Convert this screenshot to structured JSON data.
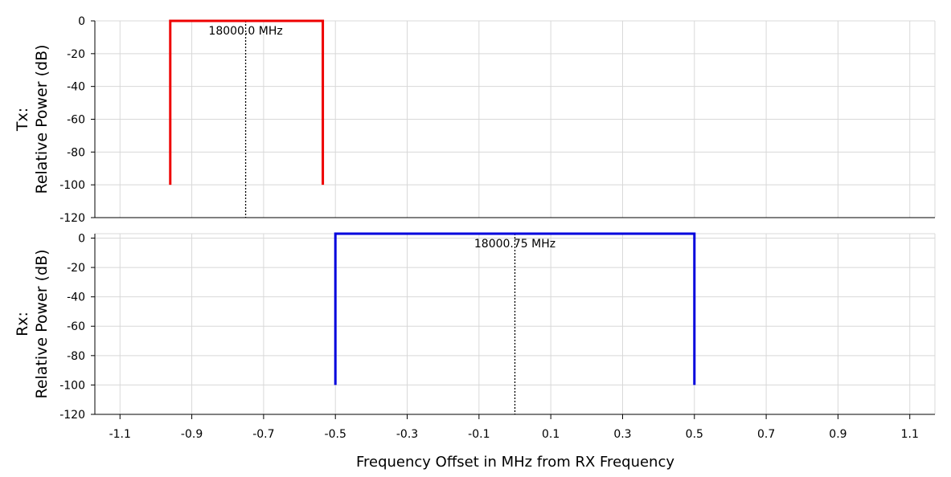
{
  "chart_data": {
    "type": "line",
    "xlabel": "Frequency Offset in MHz from RX Frequency",
    "xlim": [
      -1.17,
      1.17
    ],
    "xticks": [
      -1.1,
      -0.9,
      -0.7,
      -0.5,
      -0.3,
      -0.1,
      0.1,
      0.3,
      0.5,
      0.7,
      0.9,
      1.1
    ],
    "xtick_labels": [
      "-1.1",
      "-0.9",
      "-0.7",
      "-0.5",
      "-0.3",
      "-0.1",
      "0.1",
      "0.3",
      "0.5",
      "0.7",
      "0.9",
      "1.1"
    ],
    "grid": true,
    "panels": [
      {
        "ylabel_line1": "Tx:",
        "ylabel_line2": "Relative Power (dB)",
        "ylim": [
          -120,
          0
        ],
        "yticks": [
          0,
          -20,
          -40,
          -60,
          -80,
          -100,
          -120
        ],
        "ytick_labels": [
          "0",
          "-20",
          "-40",
          "-60",
          "-80",
          "-100",
          "-120"
        ],
        "series": {
          "color": "#ee0000",
          "x": [
            -0.96,
            -0.96,
            -0.535,
            -0.535
          ],
          "y": [
            -100,
            0,
            0,
            -100
          ]
        },
        "marker_x": -0.75,
        "marker_label": "18000.0 MHz"
      },
      {
        "ylabel_line1": "Rx:",
        "ylabel_line2": "Relative Power (dB)",
        "ylim": [
          -120,
          3
        ],
        "yticks": [
          0,
          -20,
          -40,
          -60,
          -80,
          -100,
          -120
        ],
        "ytick_labels": [
          "0",
          "-20",
          "-40",
          "-60",
          "-80",
          "-100",
          "-120"
        ],
        "series": {
          "color": "#0000dd",
          "x": [
            -0.5,
            -0.5,
            0.5,
            0.5
          ],
          "y": [
            -100,
            3,
            3,
            -100
          ]
        },
        "marker_x": 0.0,
        "marker_label": "18000.75 MHz"
      }
    ]
  }
}
